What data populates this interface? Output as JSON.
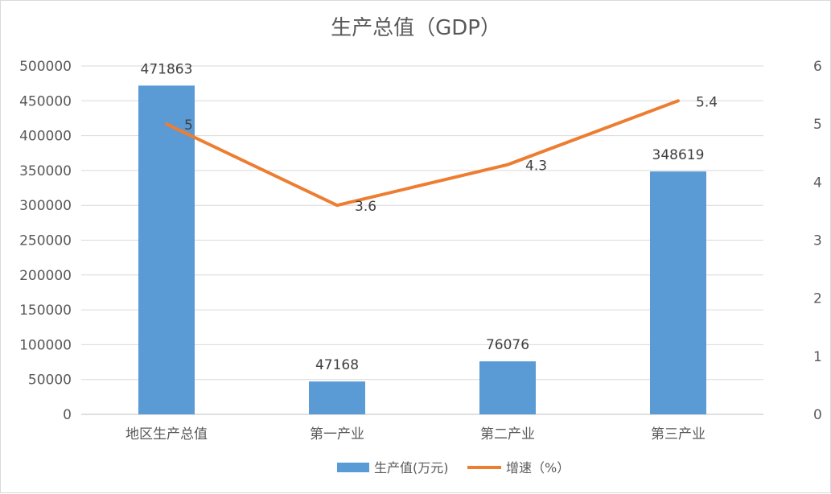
{
  "chart_data": {
    "type": "bar",
    "title": "生产总值（GDP）",
    "categories": [
      "地区生产总值",
      "第一产业",
      "第二产业",
      "第三产业"
    ],
    "series": [
      {
        "name": "生产值(万元)",
        "type": "bar",
        "axis": "left",
        "color": "#5B9BD5",
        "values": [
          471863,
          47168,
          76076,
          348619
        ],
        "labels": [
          "471863",
          "47168",
          "76076",
          "348619"
        ]
      },
      {
        "name": "增速（%）",
        "type": "line",
        "axis": "right",
        "color": "#ED7D31",
        "values": [
          5,
          3.6,
          4.3,
          5.4
        ],
        "labels": [
          "5",
          "3.6",
          "4.3",
          "5.4"
        ]
      }
    ],
    "ylim": [
      0,
      500000
    ],
    "y_ticks": [
      "0",
      "50000",
      "100000",
      "150000",
      "200000",
      "250000",
      "300000",
      "350000",
      "400000",
      "450000",
      "500000"
    ],
    "y2lim": [
      0,
      6
    ],
    "y2_ticks": [
      "0",
      "1",
      "2",
      "3",
      "4",
      "5",
      "6"
    ],
    "grid": true,
    "legend": "bottom"
  }
}
